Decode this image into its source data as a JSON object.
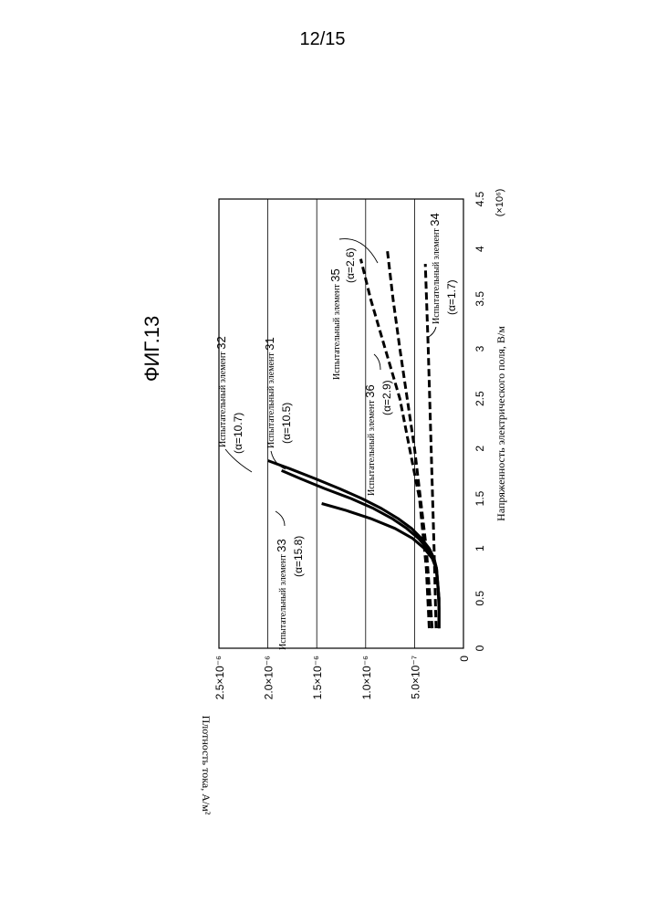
{
  "page_number": "12/15",
  "figure_label": "ФИГ.13",
  "chart_data": {
    "type": "line",
    "xlabel": "Напряженность электрического поля, В/м",
    "x_multiplier": "(×10⁶)",
    "ylabel": "Плотность тока, А/м²",
    "xlim": [
      0,
      4.5
    ],
    "ylim": [
      0,
      2.5e-06
    ],
    "x_ticks": [
      0,
      0.5,
      1,
      1.5,
      2,
      2.5,
      3,
      3.5,
      4,
      4.5
    ],
    "x_tick_labels": [
      "0",
      "0.5",
      "1",
      "1.5",
      "2",
      "2.5",
      "3",
      "3.5",
      "4",
      "4.5"
    ],
    "y_ticks": [
      0,
      5e-07,
      1e-06,
      1.5e-06,
      2e-06,
      2.5e-06
    ],
    "y_tick_labels": [
      "0",
      "5.0×10⁻⁷",
      "1.0×10⁻⁶",
      "1.5×10⁻⁶",
      "2.0×10⁻⁶",
      "2.5×10⁻⁶"
    ],
    "grid": "horizontal",
    "series": [
      {
        "name": "Испытательный элемент 33",
        "alpha": "(α=15.8)",
        "style": "solid",
        "points": [
          [
            0.2,
            2.5e-07
          ],
          [
            0.4,
            2.5e-07
          ],
          [
            0.6,
            2.6e-07
          ],
          [
            0.8,
            2.8e-07
          ],
          [
            0.9,
            3.2e-07
          ],
          [
            1.0,
            4e-07
          ],
          [
            1.1,
            5.2e-07
          ],
          [
            1.2,
            7e-07
          ],
          [
            1.3,
            9.5e-07
          ],
          [
            1.38,
            1.2e-06
          ],
          [
            1.45,
            1.45e-06
          ]
        ]
      },
      {
        "name": "Испытательный элемент 31",
        "alpha": "(α=10.5)",
        "style": "solid",
        "points": [
          [
            0.2,
            2.5e-07
          ],
          [
            0.5,
            2.5e-07
          ],
          [
            0.8,
            2.75e-07
          ],
          [
            0.9,
            3.1e-07
          ],
          [
            1.0,
            3.7e-07
          ],
          [
            1.1,
            4.6e-07
          ],
          [
            1.2,
            5.8e-07
          ],
          [
            1.3,
            7.3e-07
          ],
          [
            1.4,
            9.2e-07
          ],
          [
            1.5,
            1.15e-06
          ],
          [
            1.6,
            1.42e-06
          ],
          [
            1.7,
            1.67e-06
          ],
          [
            1.78,
            1.86e-06
          ]
        ]
      },
      {
        "name": "Испытательный элемент 32",
        "alpha": "(α=10.7)",
        "style": "solid",
        "points": [
          [
            0.2,
            2.5e-07
          ],
          [
            0.5,
            2.5e-07
          ],
          [
            0.8,
            2.75e-07
          ],
          [
            0.9,
            3e-07
          ],
          [
            1.0,
            3.5e-07
          ],
          [
            1.1,
            4.3e-07
          ],
          [
            1.2,
            5.3e-07
          ],
          [
            1.3,
            6.7e-07
          ],
          [
            1.4,
            8.4e-07
          ],
          [
            1.5,
            1.04e-06
          ],
          [
            1.6,
            1.27e-06
          ],
          [
            1.7,
            1.52e-06
          ],
          [
            1.8,
            1.78e-06
          ],
          [
            1.88,
            2e-06
          ]
        ]
      },
      {
        "name": "Испытательный элемент 36",
        "alpha": "(α=2.9)",
        "style": "dashed",
        "points": [
          [
            0.2,
            3.5e-07
          ],
          [
            0.8,
            3.8e-07
          ],
          [
            1.5,
            4.5e-07
          ],
          [
            2.0,
            5.5e-07
          ],
          [
            2.5,
            6.5e-07
          ],
          [
            3.0,
            8e-07
          ],
          [
            3.5,
            9.5e-07
          ],
          [
            3.9,
            1.05e-06
          ]
        ]
      },
      {
        "name": "Испытательный элемент 35",
        "alpha": "(α=2.6)",
        "style": "dashed",
        "points": [
          [
            0.2,
            3.2e-07
          ],
          [
            1.0,
            3.8e-07
          ],
          [
            2.0,
            5e-07
          ],
          [
            3.0,
            6.5e-07
          ],
          [
            3.5,
            7.2e-07
          ],
          [
            4.0,
            7.8e-07
          ]
        ]
      },
      {
        "name": "Испытательный элемент 34",
        "alpha": "(α=1.7)",
        "style": "dashed",
        "points": [
          [
            0.2,
            2.8e-07
          ],
          [
            1.0,
            3e-07
          ],
          [
            2.0,
            3.3e-07
          ],
          [
            3.0,
            3.6e-07
          ],
          [
            3.85,
            3.9e-07
          ]
        ]
      }
    ],
    "annotations": [
      {
        "label": "Испытательный элемент",
        "number": "32",
        "alpha": "(α=10.7)"
      },
      {
        "label": "Испытательный элемент",
        "number": "31",
        "alpha": "(α=10.5)"
      },
      {
        "label": "Испытательный элемент",
        "number": "33",
        "alpha": "(α=15.8)"
      },
      {
        "label": "Испытательный элемент",
        "number": "36",
        "alpha": "(α=2.9)"
      },
      {
        "label": "Испытательный элемент",
        "number": "35",
        "alpha": "(α=2.6)"
      },
      {
        "label": "Испытательный элемент",
        "number": "34",
        "alpha": "(α=1.7)"
      }
    ]
  }
}
